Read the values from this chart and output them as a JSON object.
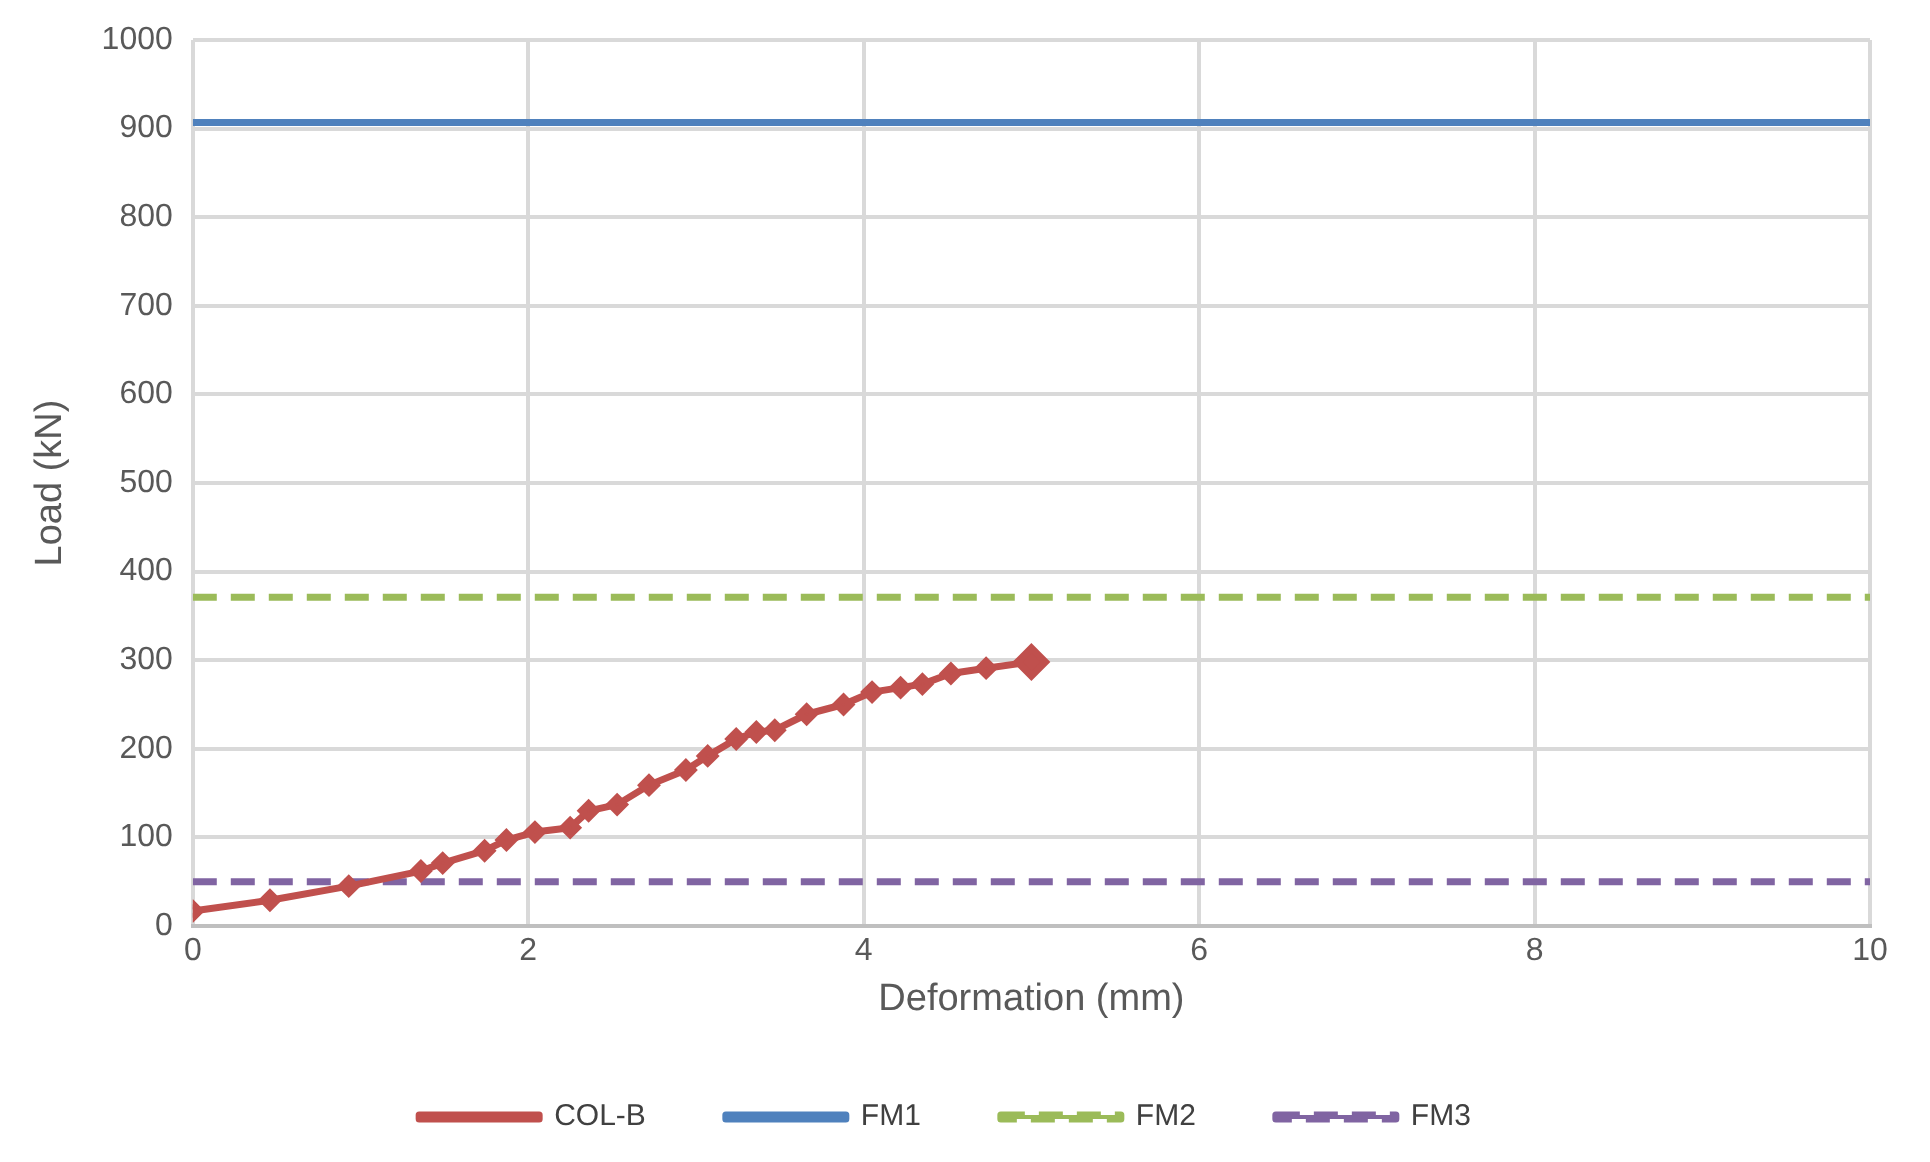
{
  "chart_data": {
    "type": "line",
    "xlabel": "Deformation (mm)",
    "ylabel": "Load (kN)",
    "xlim": [
      0,
      10
    ],
    "xticks": [
      0,
      2,
      4,
      6,
      8,
      10
    ],
    "ylim": [
      0,
      1000
    ],
    "yticks": [
      0,
      100,
      200,
      300,
      400,
      500,
      600,
      700,
      800,
      900,
      1000
    ],
    "grid": true,
    "legend": "bottom",
    "series": [
      {
        "name": "COL-B",
        "color": "#c0504d",
        "marker": "diamond",
        "line_style": "solid",
        "x": [
          0,
          0.46,
          0.93,
          1.36,
          1.49,
          1.74,
          1.87,
          2.04,
          2.25,
          2.36,
          2.53,
          2.72,
          2.94,
          3.07,
          3.24,
          3.36,
          3.47,
          3.66,
          3.88,
          4.05,
          4.22,
          4.35,
          4.52,
          4.73,
          5.0
        ],
        "values": [
          17,
          29,
          45,
          62,
          71,
          85,
          97,
          106,
          111,
          130,
          137,
          159,
          176,
          192,
          211,
          219,
          221,
          239,
          250,
          264,
          269,
          273,
          285,
          291,
          298
        ]
      },
      {
        "name": "FM1",
        "color": "#4f81bd",
        "marker": "none",
        "line_style": "solid",
        "x": [
          0,
          10
        ],
        "values": [
          907,
          907
        ]
      },
      {
        "name": "FM2",
        "color": "#9bbb59",
        "marker": "none",
        "line_style": "dashed",
        "x": [
          0,
          10
        ],
        "values": [
          371,
          371
        ]
      },
      {
        "name": "FM3",
        "color": "#8064a2",
        "marker": "none",
        "line_style": "dashed",
        "x": [
          0,
          10
        ],
        "values": [
          50,
          50
        ]
      }
    ]
  }
}
